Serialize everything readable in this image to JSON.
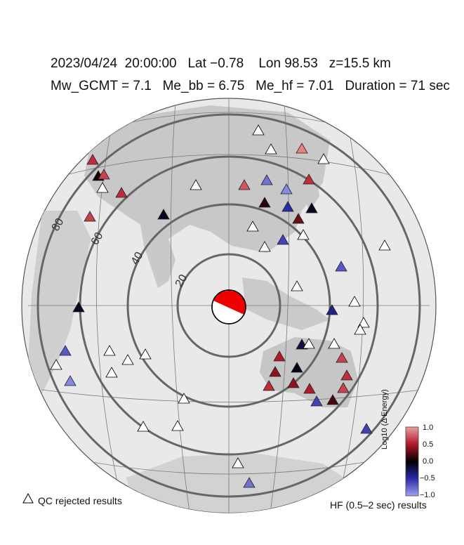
{
  "header": {
    "line1": "2023/04/24  20:00:00   Lat −0.78    Lon 98.53   z=15.5 km",
    "line2": "Mw_GCMT = 7.1   Me_bb = 6.75   Me_hf = 7.01   Duration = 71 sec"
  },
  "distance_labels": [
    "20",
    "40",
    "60",
    "80"
  ],
  "colorbar": {
    "title": "Log10 (Δ Energy)",
    "ticks": [
      "1.0",
      "0.5",
      "0.0",
      "−0.5",
      "−1.0"
    ],
    "colors": {
      "high": "#b2182b",
      "mid": "#000000",
      "low": "#3b3bdc"
    }
  },
  "legend": {
    "qc_rejected": "QC rejected results",
    "hf_results": "HF (0.5–2 sec) results"
  },
  "stations": [
    {
      "v": 1.0,
      "qc": false
    },
    {
      "v": 0.6,
      "qc": false
    },
    {
      "v": -0.9,
      "qc": false
    },
    {
      "v": 0.8,
      "qc": false
    },
    {
      "v": 0.1,
      "qc": false
    },
    {
      "v": 0.05,
      "qc": false
    },
    {
      "v": 0.7,
      "qc": false
    },
    {
      "v": -0.1,
      "qc": false
    },
    {
      "v": 0.6,
      "qc": false
    },
    {
      "v": -0.8,
      "qc": false
    },
    {
      "v": -0.5,
      "qc": false
    },
    {
      "v": -0.1,
      "qc": false
    },
    {
      "v": 0.3,
      "qc": false
    },
    {
      "v": -0.6,
      "qc": false
    },
    {
      "v": -0.7,
      "qc": false
    },
    {
      "v": -0.4,
      "qc": false
    },
    {
      "v": -0.1,
      "qc": false
    },
    {
      "v": -0.7,
      "qc": false
    },
    {
      "v": -0.9,
      "qc": false
    },
    {
      "v": -0.6,
      "qc": false
    },
    {
      "v": -0.8,
      "qc": false
    },
    {
      "v": 0.5,
      "qc": false
    },
    {
      "v": 0.4,
      "qc": false
    },
    {
      "v": -0.05,
      "qc": false
    },
    {
      "v": 0.6,
      "qc": false
    },
    {
      "v": 0.4,
      "qc": false
    },
    {
      "v": 0.5,
      "qc": false
    },
    {
      "v": 0.2,
      "qc": false
    },
    {
      "v": 0.7,
      "qc": false
    },
    {
      "v": 0.7,
      "qc": false
    },
    {
      "v": 0.6,
      "qc": false
    },
    {
      "v": -0.6,
      "qc": false
    },
    {
      "v": 0.7,
      "qc": false
    },
    {
      "v": 0.6,
      "qc": false
    },
    {
      "v": -0.2,
      "qc": false
    },
    {
      "v": 0,
      "qc": true
    },
    {
      "v": 0,
      "qc": true
    },
    {
      "v": 0,
      "qc": true
    },
    {
      "v": 0,
      "qc": true
    },
    {
      "v": 0,
      "qc": true
    },
    {
      "v": 0,
      "qc": true
    },
    {
      "v": 0,
      "qc": true
    },
    {
      "v": 0,
      "qc": true
    },
    {
      "v": 0,
      "qc": true
    },
    {
      "v": 0,
      "qc": true
    },
    {
      "v": 0,
      "qc": true
    },
    {
      "v": 0,
      "qc": true
    },
    {
      "v": 0,
      "qc": true
    },
    {
      "v": 0,
      "qc": true
    },
    {
      "v": 0,
      "qc": true
    },
    {
      "v": 0,
      "qc": true
    },
    {
      "v": 0,
      "qc": true
    },
    {
      "v": 0,
      "qc": true
    },
    {
      "v": 0,
      "qc": true
    },
    {
      "v": 0,
      "qc": true
    },
    {
      "v": 0,
      "qc": true
    },
    {
      "v": 0,
      "qc": true
    },
    {
      "v": 0,
      "qc": true
    },
    {
      "v": 0,
      "qc": true
    }
  ]
}
